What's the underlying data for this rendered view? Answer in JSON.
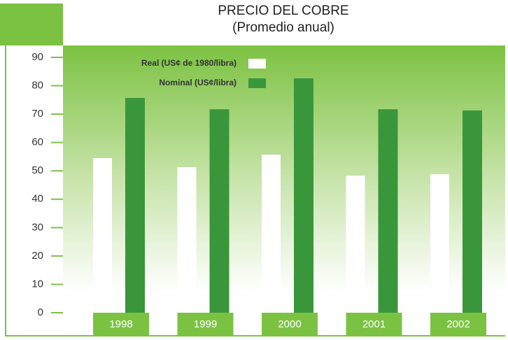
{
  "chart_data": {
    "type": "bar",
    "title": "PRECIO DEL COBRE",
    "subtitle": "(Promedio anual)",
    "categories": [
      "1998",
      "1999",
      "2000",
      "2001",
      "2002"
    ],
    "series": [
      {
        "name": "Real (US¢ de 1980/libra)",
        "color": "#ffffff",
        "values": [
          54.5,
          51.3,
          55.7,
          48.3,
          48.8
        ]
      },
      {
        "name": "Nominal (US¢/libra)",
        "color": "#3a963a",
        "values": [
          75.7,
          71.7,
          82.6,
          71.7,
          71.3
        ]
      }
    ],
    "ylim": [
      0,
      90
    ],
    "yticks": [
      0,
      10,
      20,
      30,
      40,
      50,
      60,
      70,
      80,
      90
    ]
  }
}
